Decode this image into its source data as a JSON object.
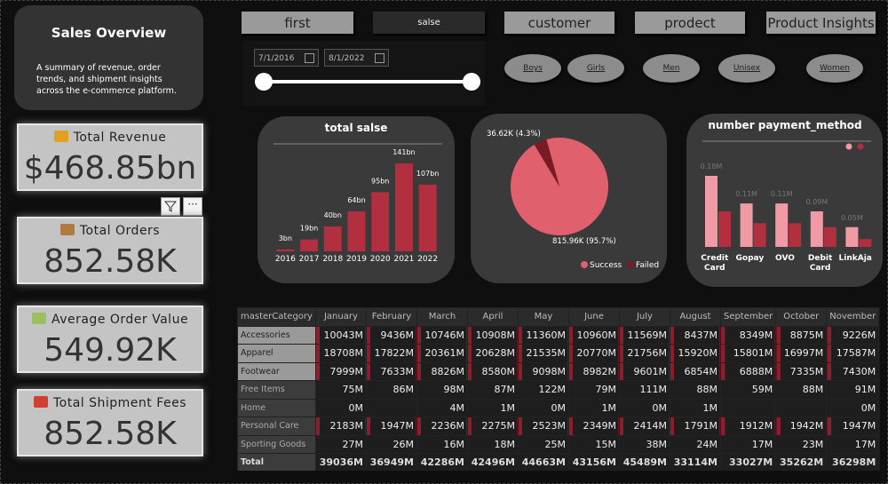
{
  "sidebar": {
    "title": "Sales Overview",
    "description": "A summary of revenue, order trends, and shipment insights across the e-commerce platform."
  },
  "kpis": [
    {
      "label": "Total Revenue",
      "value": "$468.85bn"
    },
    {
      "label": "Total Orders",
      "value": "852.58K"
    },
    {
      "label": "Average Order Value",
      "value": "549.92K"
    },
    {
      "label": "Total Shipment Fees",
      "value": "852.58K"
    }
  ],
  "nav": [
    "first",
    "salse",
    "customer",
    "prodect",
    "Product Insights"
  ],
  "date_range": {
    "start": "7/1/2016",
    "end": "8/1/2022"
  },
  "slicers": [
    "Boys",
    "Girls",
    "Men",
    "Unisex",
    "Women"
  ],
  "chart_data": [
    {
      "type": "bar",
      "title": "total salse",
      "categories": [
        "2016",
        "2017",
        "2018",
        "2019",
        "2020",
        "2021",
        "2022"
      ],
      "values": [
        3,
        19,
        40,
        64,
        95,
        141,
        107
      ],
      "value_labels": [
        "3bn",
        "19bn",
        "40bn",
        "64bn",
        "95bn",
        "141bn",
        "107bn"
      ],
      "color": "#b12f3f"
    },
    {
      "type": "pie",
      "categories": [
        "Success",
        "Failed"
      ],
      "values": [
        95.7,
        4.3
      ],
      "value_labels": [
        "815.96K (95.7%)",
        "36.62K (4.3%)"
      ],
      "colors": [
        "#e0606e",
        "#7a1a24"
      ],
      "legend": "bottom"
    },
    {
      "type": "bar",
      "title": "number payment_method",
      "categories": [
        "Credit Card",
        "Gopay",
        "OVO",
        "Debit Card",
        "LinkAja"
      ],
      "series": [
        {
          "color": "#f09aa6",
          "values": [
            0.18,
            0.11,
            0.11,
            0.09,
            0.05
          ],
          "value_labels": [
            "0.18M",
            "0.11M",
            "0.11M",
            "0.09M",
            "0.05M"
          ]
        },
        {
          "color": "#b12f3f",
          "values": [
            0.09,
            0.06,
            0.06,
            0.05,
            0.02
          ]
        }
      ],
      "legend": "top-right"
    }
  ],
  "table": {
    "header": [
      "masterCategory",
      "January",
      "February",
      "March",
      "April",
      "May",
      "June",
      "July",
      "August",
      "September",
      "October",
      "November"
    ],
    "rows": [
      [
        "Accessories",
        "10043M",
        "9436M",
        "10746M",
        "10908M",
        "11360M",
        "10960M",
        "11569M",
        "8437M",
        "8349M",
        "8875M",
        "9226M"
      ],
      [
        "Apparel",
        "18708M",
        "17822M",
        "20361M",
        "20628M",
        "21535M",
        "20770M",
        "21756M",
        "15920M",
        "15801M",
        "16997M",
        "17587M"
      ],
      [
        "Footwear",
        "7999M",
        "7633M",
        "8826M",
        "8580M",
        "9098M",
        "8982M",
        "9601M",
        "6854M",
        "6888M",
        "7335M",
        "7430M"
      ],
      [
        "Free Items",
        "75M",
        "86M",
        "98M",
        "87M",
        "122M",
        "79M",
        "111M",
        "88M",
        "59M",
        "88M",
        "91M"
      ],
      [
        "Home",
        "0M",
        null,
        "4M",
        "1M",
        "0M",
        "1M",
        "0M",
        "1M",
        null,
        null,
        "0M"
      ],
      [
        "Personal Care",
        "2183M",
        "1947M",
        "2236M",
        "2275M",
        "2523M",
        "2349M",
        "2414M",
        "1791M",
        "1912M",
        "1942M",
        "1947M"
      ],
      [
        "Sporting Goods",
        "27M",
        "26M",
        "16M",
        "18M",
        "25M",
        "15M",
        "38M",
        "24M",
        "17M",
        "23M",
        "17M"
      ]
    ],
    "total": [
      "Total",
      "39036M",
      "36949M",
      "42286M",
      "42496M",
      "44663M",
      "43156M",
      "45489M",
      "33114M",
      "33027M",
      "35262M",
      "36298M"
    ]
  }
}
